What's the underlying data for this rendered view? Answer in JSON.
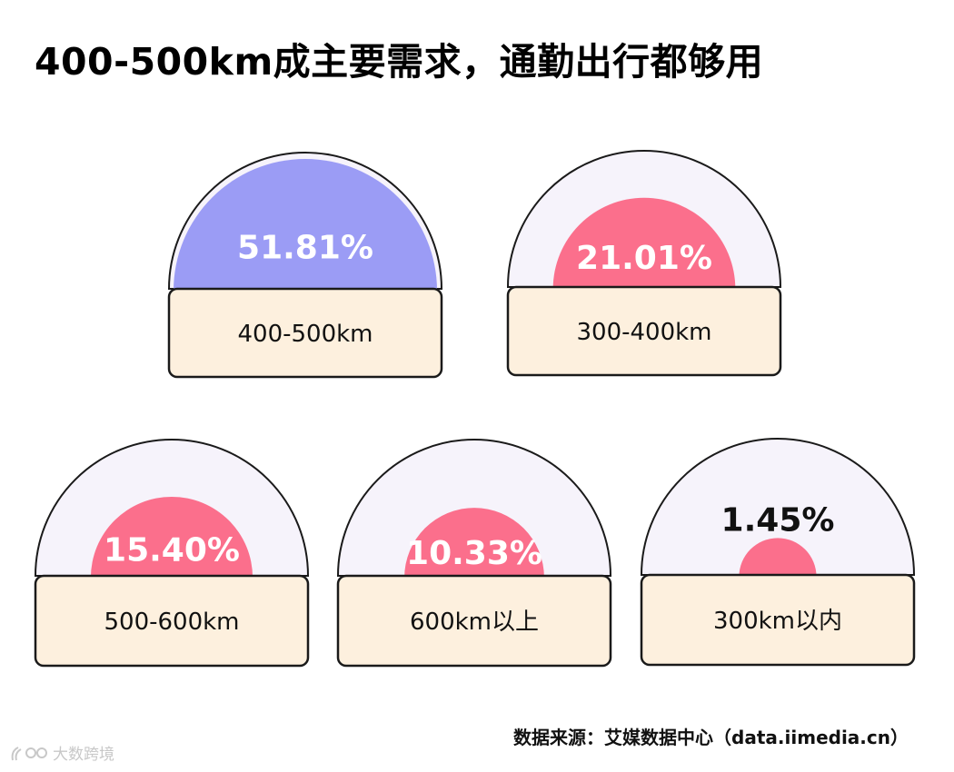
{
  "title": "400-500km成主要需求，通勤出行都够用",
  "source": "数据来源：艾媒数据中心（data.iimedia.cn）",
  "watermark": {
    "text": "大数跨境"
  },
  "colors": {
    "primary_fill": "#9b9cf5",
    "secondary_fill": "#fb6f8c",
    "gauge_background": "#f6f3fb",
    "label_box": "#fdf0de",
    "outline": "#1a1a1a"
  },
  "chart_data": {
    "type": "gauge",
    "max": 100,
    "items": [
      {
        "label": "400-500km",
        "value": 51.81,
        "value_label": "51.81%"
      },
      {
        "label": "300-400km",
        "value": 21.01,
        "value_label": "21.01%"
      },
      {
        "label": "500-600km",
        "value": 15.4,
        "value_label": "15.40%"
      },
      {
        "label": "600km以上",
        "value": 10.33,
        "value_label": "10.33%"
      },
      {
        "label": "300km以内",
        "value": 1.45,
        "value_label": "1.45%"
      }
    ]
  }
}
